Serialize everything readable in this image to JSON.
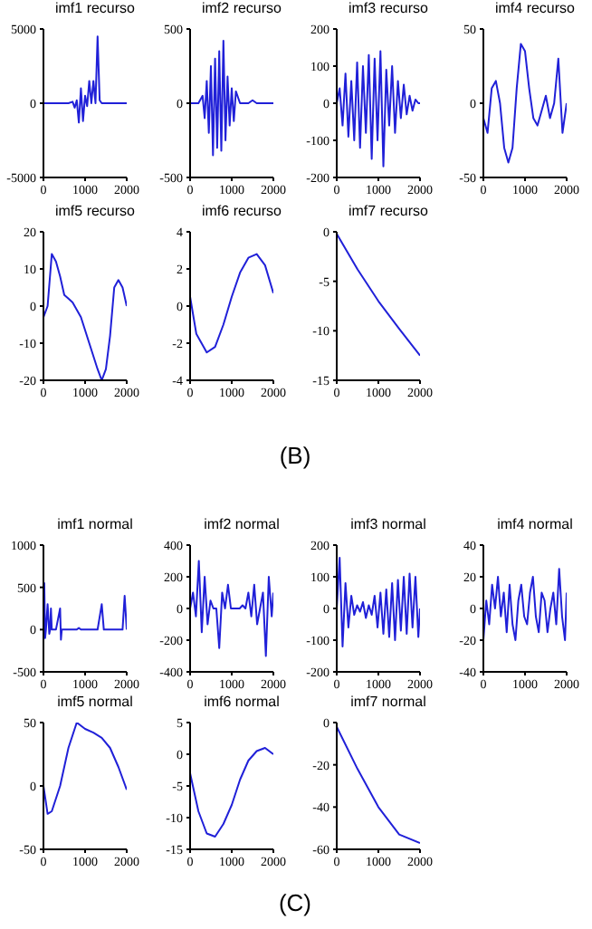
{
  "chart_data": [
    {
      "type": "line",
      "title": "imf1 recurso",
      "x": [
        0,
        200,
        400,
        600,
        700,
        750,
        800,
        850,
        900,
        950,
        1000,
        1050,
        1100,
        1150,
        1200,
        1250,
        1300,
        1350,
        1400,
        1600,
        1800,
        2000
      ],
      "values": [
        0,
        0,
        0,
        0,
        100,
        -300,
        200,
        -1300,
        1000,
        -1200,
        500,
        -200,
        1500,
        0,
        1500,
        0,
        4500,
        200,
        0,
        0,
        0,
        0
      ],
      "color": "#2020d8",
      "xlim": [
        0,
        2000
      ],
      "xticks": [
        0,
        1000,
        2000
      ],
      "ylim": [
        -5000,
        5000
      ],
      "yticks": [
        -5000,
        0,
        5000
      ],
      "marker": "none",
      "line_style": "solid"
    },
    {
      "type": "line",
      "title": "imf2 recurso",
      "x": [
        0,
        200,
        300,
        350,
        400,
        450,
        500,
        550,
        600,
        650,
        700,
        750,
        800,
        850,
        900,
        950,
        1000,
        1050,
        1100,
        1200,
        1400,
        1500,
        1600,
        1800,
        2000
      ],
      "values": [
        0,
        0,
        50,
        -100,
        150,
        -200,
        250,
        -350,
        300,
        -300,
        350,
        -320,
        420,
        -250,
        180,
        -150,
        100,
        -120,
        80,
        0,
        0,
        20,
        0,
        0,
        0
      ],
      "color": "#2020d8",
      "xlim": [
        0,
        2000
      ],
      "xticks": [
        0,
        1000,
        2000
      ],
      "ylim": [
        -500,
        500
      ],
      "yticks": [
        -500,
        0,
        500
      ],
      "marker": "none",
      "line_style": "solid"
    },
    {
      "type": "line",
      "title": "imf3 recurso",
      "x": [
        0,
        70,
        140,
        210,
        280,
        350,
        420,
        490,
        560,
        630,
        700,
        770,
        840,
        910,
        980,
        1050,
        1120,
        1190,
        1260,
        1330,
        1400,
        1470,
        1540,
        1610,
        1680,
        1750,
        1820,
        1890,
        1960,
        2000
      ],
      "values": [
        0,
        40,
        -60,
        80,
        -90,
        60,
        -100,
        110,
        -120,
        100,
        -80,
        130,
        -150,
        120,
        -100,
        140,
        -170,
        90,
        -60,
        100,
        -80,
        60,
        -40,
        50,
        -30,
        20,
        -20,
        10,
        0,
        0
      ],
      "color": "#2020d8",
      "xlim": [
        0,
        2000
      ],
      "xticks": [
        0,
        1000,
        2000
      ],
      "ylim": [
        -200,
        200
      ],
      "yticks": [
        -200,
        -100,
        0,
        100,
        200
      ],
      "marker": "none",
      "line_style": "solid"
    },
    {
      "type": "line",
      "title": "imf4 recurso",
      "x": [
        0,
        100,
        200,
        300,
        400,
        500,
        600,
        700,
        800,
        900,
        1000,
        1100,
        1200,
        1300,
        1400,
        1500,
        1600,
        1700,
        1800,
        1900,
        2000
      ],
      "values": [
        -10,
        -20,
        10,
        15,
        0,
        -30,
        -40,
        -30,
        10,
        40,
        35,
        10,
        -10,
        -15,
        -5,
        5,
        -10,
        0,
        30,
        -20,
        0
      ],
      "color": "#2020d8",
      "xlim": [
        0,
        2000
      ],
      "xticks": [
        0,
        1000,
        2000
      ],
      "ylim": [
        -50,
        50
      ],
      "yticks": [
        -50,
        0,
        50
      ],
      "marker": "none",
      "line_style": "solid"
    },
    {
      "type": "line",
      "title": "imf5 recurso",
      "x": [
        0,
        100,
        200,
        300,
        400,
        500,
        600,
        700,
        900,
        1100,
        1300,
        1400,
        1500,
        1600,
        1700,
        1800,
        1900,
        2000
      ],
      "values": [
        -3,
        0,
        14,
        12,
        8,
        3,
        2,
        1,
        -3,
        -10,
        -17,
        -20,
        -17,
        -8,
        5,
        7,
        5,
        0
      ],
      "color": "#2020d8",
      "xlim": [
        0,
        2000
      ],
      "xticks": [
        0,
        1000,
        2000
      ],
      "ylim": [
        -20,
        20
      ],
      "yticks": [
        -20,
        -10,
        0,
        10,
        20
      ],
      "marker": "none",
      "line_style": "solid"
    },
    {
      "type": "line",
      "title": "imf6 recurso",
      "x": [
        0,
        150,
        400,
        600,
        800,
        1000,
        1200,
        1400,
        1600,
        1800,
        2000
      ],
      "values": [
        0.5,
        -1.5,
        -2.5,
        -2.2,
        -1,
        0.5,
        1.8,
        2.6,
        2.8,
        2.2,
        0.7
      ],
      "color": "#2020d8",
      "xlim": [
        0,
        2000
      ],
      "xticks": [
        0,
        1000,
        2000
      ],
      "ylim": [
        -4,
        4
      ],
      "yticks": [
        -4,
        -2,
        0,
        2,
        4
      ],
      "marker": "none",
      "line_style": "solid"
    },
    {
      "type": "line",
      "title": "imf7 recurso",
      "x": [
        0,
        500,
        1000,
        1500,
        2000
      ],
      "values": [
        -0.2,
        -3.8,
        -7,
        -9.8,
        -12.5
      ],
      "color": "#2020d8",
      "xlim": [
        0,
        2000
      ],
      "xticks": [
        0,
        1000,
        2000
      ],
      "ylim": [
        -15,
        0
      ],
      "yticks": [
        -15,
        -10,
        -5,
        0
      ],
      "marker": "none",
      "line_style": "solid",
      "annotations": [
        "(B)"
      ]
    },
    {
      "type": "line",
      "title": "imf1 normal",
      "x": [
        0,
        20,
        40,
        60,
        100,
        140,
        160,
        180,
        200,
        300,
        400,
        420,
        440,
        460,
        500,
        700,
        800,
        850,
        900,
        1000,
        1300,
        1400,
        1450,
        1500,
        1700,
        1900,
        1950,
        2000
      ],
      "values": [
        0,
        550,
        -100,
        0,
        300,
        -50,
        0,
        250,
        0,
        0,
        250,
        -120,
        0,
        0,
        0,
        0,
        0,
        20,
        0,
        0,
        0,
        300,
        0,
        0,
        0,
        0,
        400,
        0
      ],
      "color": "#2020d8",
      "xlim": [
        0,
        2000
      ],
      "xticks": [
        0,
        1000,
        2000
      ],
      "ylim": [
        -500,
        1000
      ],
      "yticks": [
        -500,
        0,
        500,
        1000
      ],
      "marker": "none",
      "line_style": "solid"
    },
    {
      "type": "line",
      "title": "imf2 normal",
      "x": [
        0,
        70,
        140,
        210,
        280,
        350,
        420,
        490,
        560,
        630,
        700,
        770,
        840,
        910,
        980,
        1050,
        1120,
        1190,
        1260,
        1330,
        1400,
        1470,
        1540,
        1610,
        1680,
        1750,
        1820,
        1890,
        1960,
        2000
      ],
      "values": [
        0,
        100,
        -50,
        300,
        -150,
        200,
        -100,
        50,
        0,
        0,
        -250,
        100,
        0,
        150,
        0,
        0,
        0,
        0,
        20,
        0,
        100,
        -50,
        150,
        -100,
        0,
        100,
        -300,
        200,
        -50,
        100
      ],
      "color": "#2020d8",
      "xlim": [
        0,
        2000
      ],
      "xticks": [
        0,
        1000,
        2000
      ],
      "ylim": [
        -400,
        400
      ],
      "yticks": [
        -400,
        -200,
        0,
        200,
        400
      ],
      "marker": "none",
      "line_style": "solid"
    },
    {
      "type": "line",
      "title": "imf3 normal",
      "x": [
        0,
        70,
        140,
        210,
        280,
        350,
        420,
        490,
        560,
        630,
        700,
        770,
        840,
        910,
        980,
        1050,
        1120,
        1190,
        1260,
        1330,
        1400,
        1470,
        1540,
        1610,
        1680,
        1750,
        1820,
        1890,
        1960,
        2000
      ],
      "values": [
        0,
        160,
        -120,
        80,
        -60,
        40,
        -20,
        10,
        -10,
        20,
        -30,
        10,
        -20,
        40,
        -60,
        50,
        -80,
        60,
        -90,
        80,
        -100,
        90,
        -70,
        100,
        -80,
        110,
        -60,
        100,
        -90,
        0
      ],
      "color": "#2020d8",
      "xlim": [
        0,
        2000
      ],
      "xticks": [
        0,
        1000,
        2000
      ],
      "ylim": [
        -200,
        200
      ],
      "yticks": [
        -200,
        -100,
        0,
        100,
        200
      ],
      "marker": "none",
      "line_style": "solid"
    },
    {
      "type": "line",
      "title": "imf4 normal",
      "x": [
        0,
        70,
        140,
        210,
        280,
        350,
        420,
        490,
        560,
        630,
        700,
        770,
        840,
        910,
        980,
        1050,
        1120,
        1190,
        1260,
        1330,
        1400,
        1470,
        1540,
        1610,
        1680,
        1750,
        1820,
        1890,
        1960,
        2000
      ],
      "values": [
        -20,
        5,
        -10,
        15,
        0,
        20,
        -5,
        10,
        -15,
        15,
        -10,
        -20,
        5,
        15,
        -5,
        -10,
        10,
        20,
        -5,
        -15,
        10,
        5,
        -15,
        0,
        10,
        -10,
        25,
        -5,
        -20,
        10
      ],
      "color": "#2020d8",
      "xlim": [
        0,
        2000
      ],
      "xticks": [
        0,
        1000,
        2000
      ],
      "ylim": [
        -40,
        40
      ],
      "yticks": [
        -40,
        -20,
        0,
        20,
        40
      ],
      "marker": "none",
      "line_style": "solid"
    },
    {
      "type": "line",
      "title": "imf5 normal",
      "x": [
        0,
        100,
        200,
        400,
        600,
        800,
        1000,
        1200,
        1400,
        1600,
        1800,
        2000
      ],
      "values": [
        0,
        -22,
        -20,
        0,
        30,
        50,
        45,
        42,
        38,
        30,
        15,
        -3
      ],
      "color": "#2020d8",
      "xlim": [
        0,
        2000
      ],
      "xticks": [
        0,
        1000,
        2000
      ],
      "ylim": [
        -50,
        50
      ],
      "yticks": [
        -50,
        0,
        50
      ],
      "marker": "none",
      "line_style": "solid"
    },
    {
      "type": "line",
      "title": "imf6 normal",
      "x": [
        0,
        200,
        400,
        600,
        800,
        1000,
        1200,
        1400,
        1600,
        1800,
        2000
      ],
      "values": [
        -3,
        -9,
        -12.5,
        -13,
        -11,
        -8,
        -4,
        -1,
        0.5,
        1,
        0
      ],
      "color": "#2020d8",
      "xlim": [
        0,
        2000
      ],
      "xticks": [
        0,
        1000,
        2000
      ],
      "ylim": [
        -15,
        5
      ],
      "yticks": [
        -15,
        -10,
        -5,
        0,
        5
      ],
      "marker": "none",
      "line_style": "solid"
    },
    {
      "type": "line",
      "title": "imf7 normal",
      "x": [
        0,
        500,
        1000,
        1500,
        2000
      ],
      "values": [
        -2,
        -22,
        -40,
        -53,
        -57
      ],
      "color": "#2020d8",
      "xlim": [
        0,
        2000
      ],
      "xticks": [
        0,
        1000,
        2000
      ],
      "ylim": [
        -60,
        0
      ],
      "yticks": [
        -60,
        -40,
        -20,
        0
      ],
      "marker": "none",
      "line_style": "solid",
      "annotations": [
        "(C)"
      ]
    }
  ]
}
